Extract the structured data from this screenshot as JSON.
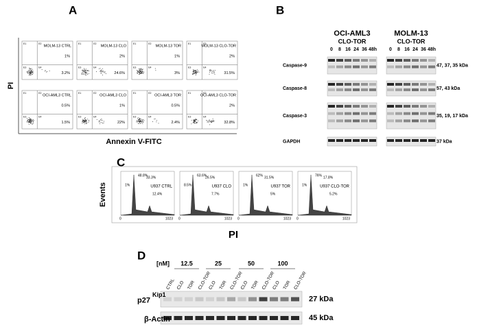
{
  "panel_a": {
    "label": "A",
    "y_axis": "PI",
    "x_axis": "Annexin V-FITC",
    "quadrant_labels": [
      "E1",
      "E2",
      "E3",
      "E4"
    ],
    "plots": [
      {
        "title": "MOLM-13 CTRL",
        "upper_right": "1%",
        "lower_right": "3.2%"
      },
      {
        "title": "MOLM-13 CLO",
        "upper_right": "2%",
        "lower_right": "24.6%"
      },
      {
        "title": "MOLM-13 TOR",
        "upper_right": "1%",
        "lower_right": "3%"
      },
      {
        "title": "MOLM-13 CLO-TOR",
        "upper_right": "2%",
        "lower_right": "31.5%"
      },
      {
        "title": "OCI-AML3 CTRL",
        "upper_right": "0.5%",
        "lower_right": "1.5%"
      },
      {
        "title": "OCI-AML3 CLO",
        "upper_right": "1%",
        "lower_right": "22%"
      },
      {
        "title": "OCI-AML3 TOR",
        "upper_right": "0.5%",
        "lower_right": "2.4%"
      },
      {
        "title": "OCI-AML3 CLO-TOR",
        "upper_right": "2%",
        "lower_right": "32.8%"
      }
    ]
  },
  "panel_b": {
    "label": "B",
    "cell_lines": [
      "OCI-AML3",
      "MOLM-13"
    ],
    "treatment": "CLO-TOR",
    "timepoints": [
      "0",
      "8",
      "16",
      "24",
      "36",
      "48h"
    ],
    "rows": [
      {
        "protein": "Caspase-9",
        "size": "47, 37, 35 kDa"
      },
      {
        "protein": "Caspase-8",
        "size": "57, 43 kDa"
      },
      {
        "protein": "Caspase-3",
        "size": "35, 19, 17 kDa"
      },
      {
        "protein": "GAPDH",
        "size": "37 kDa"
      }
    ]
  },
  "panel_c": {
    "label": "C",
    "y_axis": "Events",
    "x_axis": "PI",
    "x_min": "0",
    "x_max": "1023",
    "plots": [
      {
        "title": "U937 CTRL",
        "labels": [
          "48.8%",
          "33.3%",
          "1%",
          "12.4%"
        ]
      },
      {
        "title": "U937 CLO",
        "labels": [
          "63.6%",
          "26.5%",
          "8.5%",
          "7.7%"
        ]
      },
      {
        "title": "U937 TOR",
        "labels": [
          "62%",
          "31.5%",
          "1%",
          "5%"
        ]
      },
      {
        "title": "U937 CLO-TOR",
        "labels": [
          "76%",
          "17.8%",
          "1%",
          "5.2%"
        ]
      }
    ]
  },
  "panel_d": {
    "label": "D",
    "unit": "[nM]",
    "concentrations": [
      "12.5",
      "25",
      "50",
      "100"
    ],
    "lanes": [
      "CTRL",
      "CLO",
      "TOR",
      "CLO-TOR",
      "CLO",
      "TOR",
      "CLO-TOR",
      "CLO",
      "TOR",
      "CLO-TOR",
      "CLO",
      "TOR",
      "CLO-TOR"
    ],
    "rows": [
      {
        "protein": "p27",
        "superscript": "Kip1",
        "size": "27 kDa"
      },
      {
        "protein": "β-Actin",
        "size": "45 kDa"
      }
    ]
  }
}
